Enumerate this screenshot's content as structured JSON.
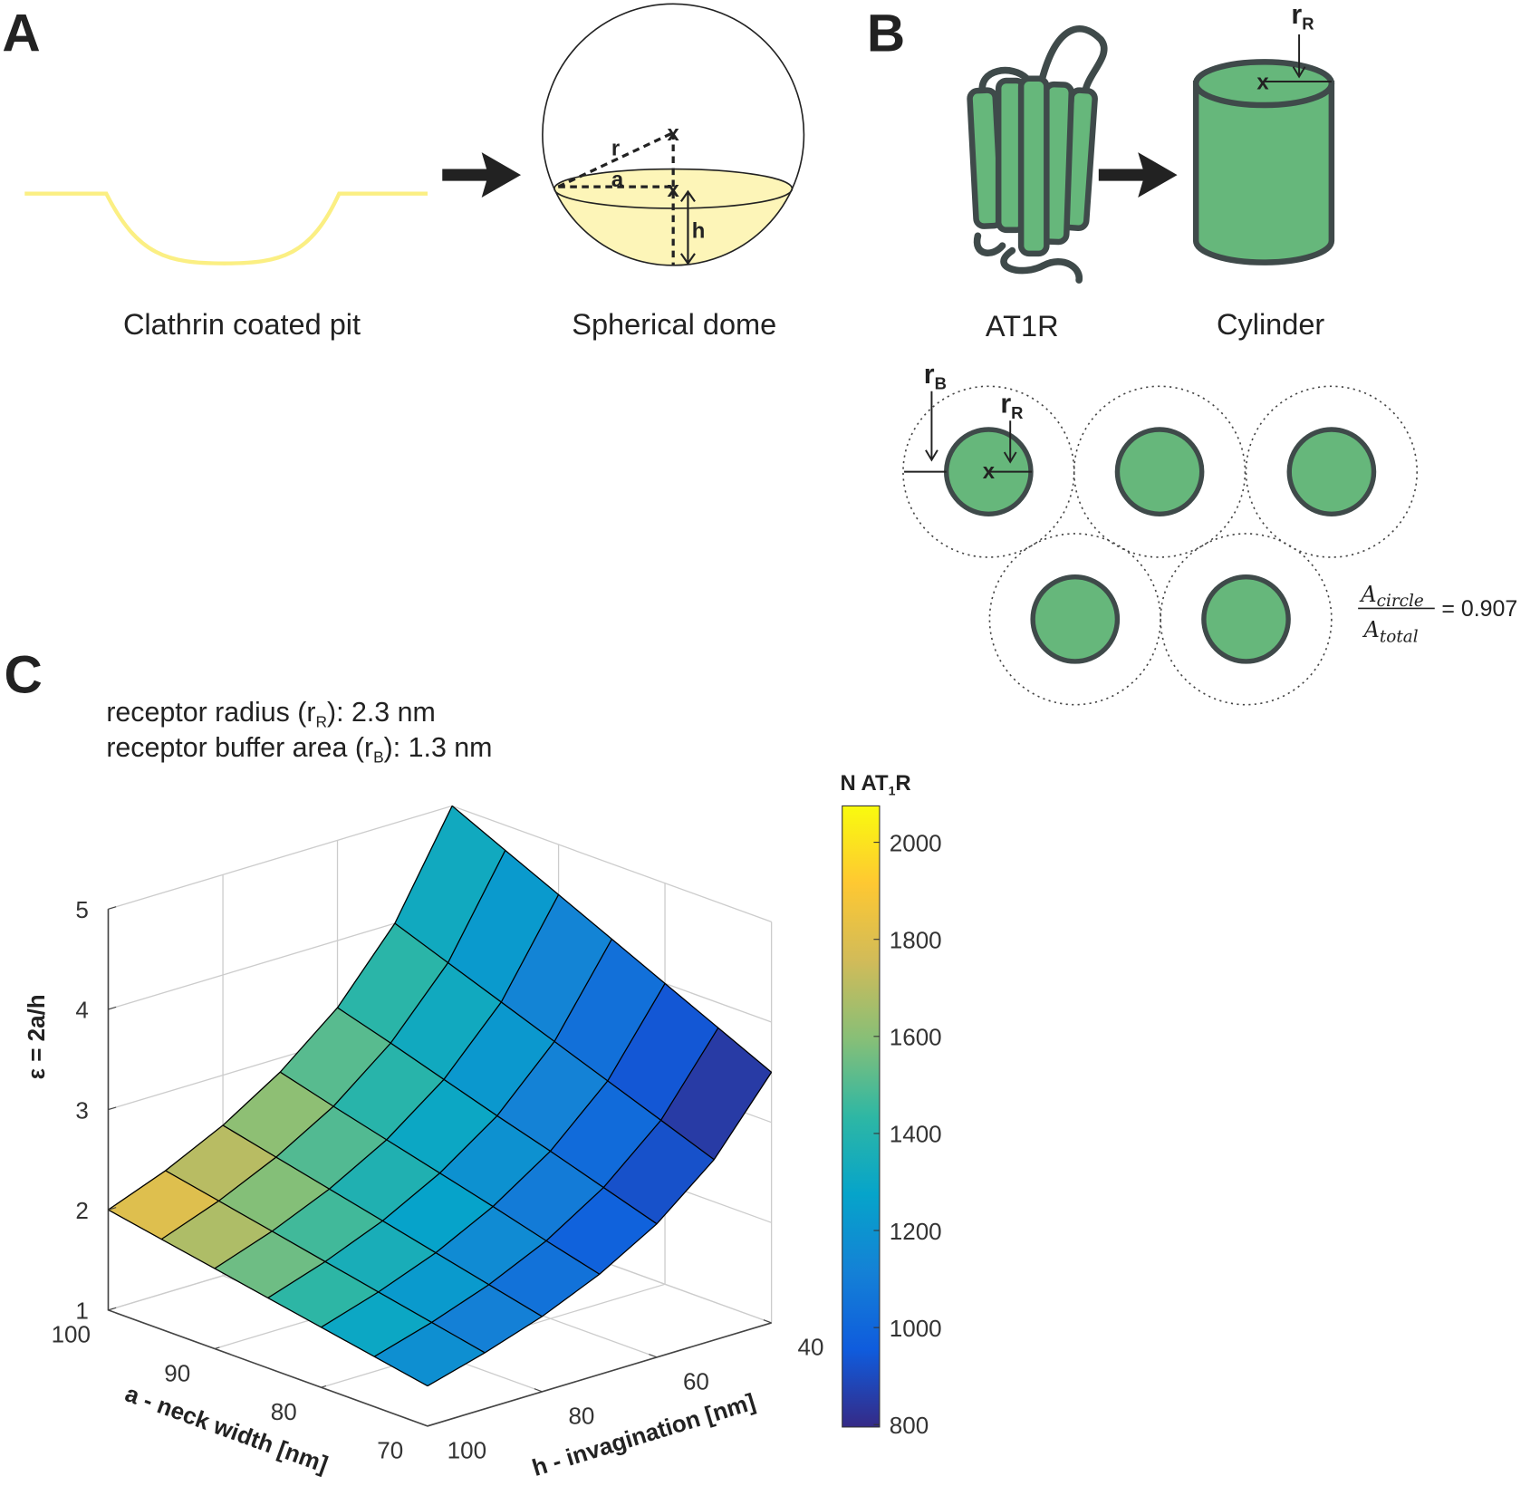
{
  "panel_labels": [
    "A",
    "B",
    "C"
  ],
  "panel_a": {
    "left_caption": "Clathrin coated pit",
    "right_caption": "Spherical dome",
    "labels": {
      "r": "r",
      "a": "a",
      "h": "h"
    },
    "center_mark": "x"
  },
  "panel_b": {
    "receptor_caption": "AT1R",
    "cylinder_caption": "Cylinder",
    "center_mark": "x",
    "radius_label": {
      "base": "r",
      "sub": "R"
    },
    "buffer_label": {
      "base": "r",
      "sub": "B"
    },
    "formula": {
      "numerator": {
        "base": "A",
        "sub": "circle"
      },
      "denominator": {
        "base": "A",
        "sub": "total"
      },
      "result": "= 0.907"
    }
  },
  "chart_data": {
    "type": "surface3d",
    "info_lines": [
      {
        "text": "receptor radius (r",
        "sub": "R",
        "tail": "): 2.3 nm"
      },
      {
        "text": "receptor buffer area (r",
        "sub": "B",
        "tail": "): 1.3 nm"
      }
    ],
    "xlabel": "a - neck width [nm]",
    "ylabel": "h - invagination [nm]",
    "zlabel": "ε = 2a/h",
    "a": [
      100,
      95,
      90,
      85,
      80,
      75,
      70
    ],
    "h": [
      100,
      90,
      80,
      70,
      60,
      50,
      40
    ],
    "z": [
      [
        2,
        1.9,
        1.8,
        1.7,
        1.6,
        1.5,
        1.4
      ],
      [
        2.22,
        2.11,
        2,
        1.89,
        1.78,
        1.67,
        1.56
      ],
      [
        2.5,
        2.375,
        2.25,
        2.125,
        2,
        1.875,
        1.75
      ],
      [
        2.86,
        2.71,
        2.57,
        2.43,
        2.29,
        2.14,
        2
      ],
      [
        3.33,
        3.17,
        3,
        2.83,
        2.67,
        2.5,
        2.33
      ],
      [
        4,
        3.8,
        3.6,
        3.4,
        3.2,
        3,
        2.8
      ],
      [
        5,
        4.75,
        4.5,
        4.25,
        4,
        3.75,
        3.5
      ]
    ],
    "cell_values": [
      [
        1800,
        1680,
        1550,
        1430,
        1300,
        1180
      ],
      [
        1700,
        1590,
        1470,
        1350,
        1230,
        1110
      ],
      [
        1610,
        1500,
        1380,
        1270,
        1160,
        1050
      ],
      [
        1510,
        1410,
        1300,
        1190,
        1090,
        980
      ],
      [
        1420,
        1320,
        1220,
        1120,
        1020,
        920
      ],
      [
        1320,
        1230,
        1130,
        1040,
        940,
        850
      ]
    ],
    "xlim": [
      70,
      100
    ],
    "xticks": [
      70,
      80,
      90,
      100
    ],
    "ylim": [
      40,
      100
    ],
    "yticks": [
      40,
      60,
      80,
      100
    ],
    "zlim": [
      1,
      5
    ],
    "zticks": [
      1,
      2,
      3,
      4,
      5
    ],
    "grid": true,
    "colorbar": {
      "title": {
        "text": "N AT",
        "sub": "1",
        "tail": "R"
      },
      "clim": [
        795,
        2075
      ],
      "cticks": [
        800,
        1000,
        1200,
        1400,
        1600,
        1800,
        2000
      ],
      "colormap": [
        "#352a87",
        "#0f5cdd",
        "#1481d6",
        "#06a4ca",
        "#2eb7a4",
        "#87bf77",
        "#d1bb59",
        "#fec832",
        "#f9fb0e"
      ]
    }
  }
}
